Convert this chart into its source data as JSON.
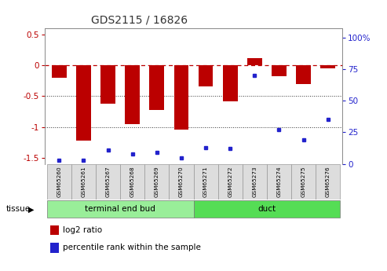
{
  "title": "GDS2115 / 16826",
  "samples": [
    "GSM65260",
    "GSM65261",
    "GSM65267",
    "GSM65268",
    "GSM65269",
    "GSM65270",
    "GSM65271",
    "GSM65272",
    "GSM65273",
    "GSM65274",
    "GSM65275",
    "GSM65276"
  ],
  "log2_ratio": [
    -0.2,
    -1.22,
    -0.62,
    -0.95,
    -0.72,
    -1.04,
    -0.34,
    -0.58,
    0.12,
    -0.17,
    -0.3,
    -0.05
  ],
  "percentile_rank": [
    3,
    3,
    11,
    8,
    9,
    5,
    13,
    12,
    70,
    27,
    19,
    35
  ],
  "ylim_left": [
    -1.6,
    0.6
  ],
  "ylim_right": [
    0,
    107
  ],
  "right_ticks": [
    0,
    25,
    50,
    75,
    100
  ],
  "right_tick_labels": [
    "0",
    "25",
    "50",
    "75",
    "100%"
  ],
  "left_ticks": [
    -1.5,
    -1.0,
    -0.5,
    0.0,
    0.5
  ],
  "left_tick_labels": [
    "-1.5",
    "-1",
    "-0.5",
    "0",
    "0.5"
  ],
  "tissue_groups": [
    {
      "label": "terminal end bud",
      "start": 0,
      "end": 6,
      "color": "#99EE99"
    },
    {
      "label": "duct",
      "start": 6,
      "end": 12,
      "color": "#55DD55"
    }
  ],
  "bar_color": "#BB0000",
  "dot_color": "#2222CC",
  "zero_line_color": "#BB0000",
  "grid_line_color": "#333333",
  "bg_color": "#FFFFFF",
  "plot_bg_color": "#FFFFFF",
  "sample_box_color": "#DDDDDD",
  "legend_items": [
    {
      "label": "log2 ratio",
      "color": "#BB0000"
    },
    {
      "label": "percentile rank within the sample",
      "color": "#2222CC"
    }
  ],
  "tissue_label": "tissue"
}
